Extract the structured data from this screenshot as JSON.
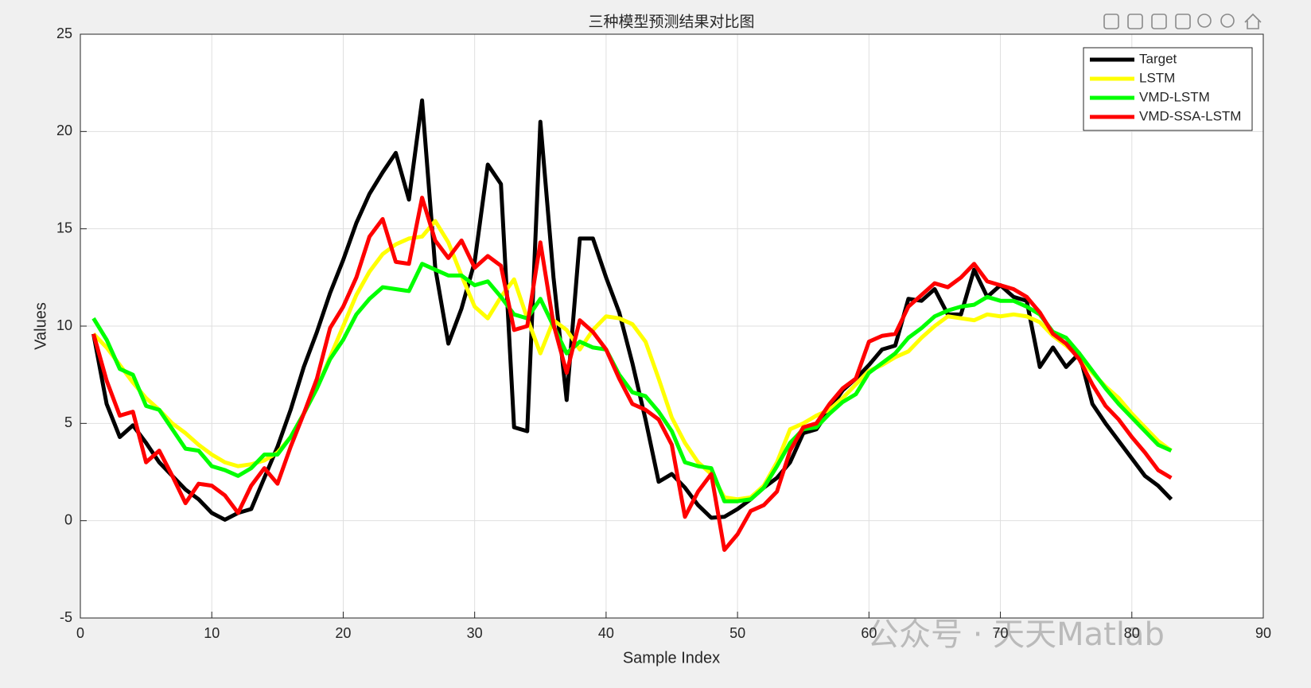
{
  "chart_data": {
    "type": "line",
    "title": "三种模型预测结果对比图",
    "x_label": "Sample Index",
    "y_label": "Values",
    "watermark": "公众号 · 天天Matlab",
    "x": [
      1,
      2,
      3,
      4,
      5,
      6,
      7,
      8,
      9,
      10,
      11,
      12,
      13,
      14,
      15,
      16,
      17,
      18,
      19,
      20,
      21,
      22,
      23,
      24,
      25,
      26,
      27,
      28,
      29,
      30,
      31,
      32,
      33,
      34,
      35,
      36,
      37,
      38,
      39,
      40,
      41,
      42,
      43,
      44,
      45,
      46,
      47,
      48,
      49,
      50,
      51,
      52,
      53,
      54,
      55,
      56,
      57,
      58,
      59,
      60,
      61,
      62,
      63,
      64,
      65,
      66,
      67,
      68,
      69,
      70,
      71,
      72,
      73,
      74,
      75,
      76,
      77,
      78,
      79,
      80,
      81,
      82,
      83
    ],
    "series": [
      {
        "name": "Target",
        "color": "#000000",
        "values": [
          9.6,
          6.0,
          4.3,
          4.9,
          4.0,
          3.0,
          2.3,
          1.6,
          1.1,
          0.4,
          0.05,
          0.4,
          0.6,
          2.2,
          3.8,
          5.7,
          7.9,
          9.7,
          11.7,
          13.4,
          15.3,
          16.8,
          17.9,
          18.9,
          16.5,
          21.6,
          13.0,
          9.1,
          10.9,
          13.3,
          18.3,
          17.3,
          4.8,
          4.6,
          20.5,
          12.5,
          6.2,
          14.5,
          14.5,
          12.5,
          10.7,
          8.1,
          5.2,
          2.0,
          2.4,
          1.7,
          0.8,
          0.15,
          0.2,
          0.6,
          1.1,
          1.7,
          2.2,
          3.0,
          4.5,
          4.7,
          5.7,
          6.7,
          7.3,
          8.0,
          8.8,
          9.0,
          11.4,
          11.3,
          11.9,
          10.6,
          10.6,
          12.9,
          11.5,
          12.1,
          11.5,
          11.3,
          7.9,
          8.9,
          7.9,
          8.6,
          6.0,
          5.0,
          4.1,
          3.2,
          2.3,
          1.8,
          1.1
        ]
      },
      {
        "name": "LSTM",
        "color": "#ffff00",
        "values": [
          9.6,
          8.9,
          8.0,
          7.1,
          6.3,
          5.7,
          5.0,
          4.5,
          3.9,
          3.4,
          3.0,
          2.8,
          2.9,
          3.1,
          3.5,
          4.3,
          5.5,
          6.8,
          8.4,
          10.0,
          11.6,
          12.8,
          13.7,
          14.2,
          14.5,
          14.6,
          15.4,
          14.3,
          12.6,
          11.0,
          10.4,
          11.5,
          12.4,
          10.4,
          8.6,
          10.3,
          9.8,
          8.8,
          9.8,
          10.5,
          10.4,
          10.1,
          9.2,
          7.3,
          5.3,
          4.0,
          3.0,
          2.4,
          1.2,
          1.1,
          1.2,
          1.8,
          3.0,
          4.7,
          5.0,
          5.4,
          5.7,
          6.3,
          7.0,
          7.7,
          8.0,
          8.4,
          8.7,
          9.4,
          10.0,
          10.5,
          10.4,
          10.3,
          10.6,
          10.5,
          10.6,
          10.5,
          10.2,
          9.5,
          9.0,
          8.4,
          7.6,
          6.9,
          6.3,
          5.5,
          4.8,
          4.1,
          3.6
        ]
      },
      {
        "name": "VMD-LSTM",
        "color": "#00ff00",
        "values": [
          10.4,
          9.3,
          7.8,
          7.5,
          5.9,
          5.7,
          4.7,
          3.7,
          3.6,
          2.8,
          2.6,
          2.3,
          2.7,
          3.4,
          3.4,
          4.3,
          5.5,
          6.8,
          8.3,
          9.3,
          10.6,
          11.4,
          12.0,
          11.9,
          11.8,
          13.2,
          12.9,
          12.6,
          12.6,
          12.1,
          12.3,
          11.5,
          10.6,
          10.4,
          11.4,
          10.0,
          8.6,
          9.2,
          8.9,
          8.8,
          7.5,
          6.6,
          6.4,
          5.6,
          4.6,
          3.0,
          2.8,
          2.7,
          1.0,
          1.0,
          1.1,
          1.7,
          2.8,
          4.0,
          4.7,
          4.8,
          5.5,
          6.1,
          6.5,
          7.6,
          8.1,
          8.6,
          9.4,
          9.9,
          10.5,
          10.8,
          11.0,
          11.1,
          11.5,
          11.3,
          11.3,
          11.0,
          10.6,
          9.7,
          9.4,
          8.6,
          7.7,
          6.8,
          6.0,
          5.3,
          4.6,
          3.9,
          3.6
        ]
      },
      {
        "name": "VMD-SSA-LSTM",
        "color": "#ff0000",
        "values": [
          9.6,
          7.2,
          5.4,
          5.6,
          3.0,
          3.6,
          2.3,
          0.9,
          1.9,
          1.8,
          1.3,
          0.4,
          1.8,
          2.7,
          1.9,
          3.8,
          5.5,
          7.3,
          9.9,
          11.0,
          12.5,
          14.6,
          15.5,
          13.3,
          13.2,
          16.6,
          14.4,
          13.5,
          14.4,
          13.0,
          13.6,
          13.1,
          9.8,
          10.0,
          14.3,
          10.1,
          7.6,
          10.3,
          9.7,
          8.8,
          7.3,
          6.0,
          5.7,
          5.2,
          3.9,
          0.2,
          1.5,
          2.4,
          -1.5,
          -0.7,
          0.5,
          0.8,
          1.5,
          3.6,
          4.8,
          5.0,
          6.0,
          6.8,
          7.3,
          9.2,
          9.5,
          9.6,
          11.0,
          11.6,
          12.2,
          12.0,
          12.5,
          13.2,
          12.3,
          12.1,
          11.9,
          11.5,
          10.7,
          9.6,
          9.1,
          8.3,
          7.0,
          5.9,
          5.2,
          4.3,
          3.5,
          2.6,
          2.2
        ]
      }
    ],
    "xlim": [
      0,
      90
    ],
    "xticks": [
      0,
      10,
      20,
      30,
      40,
      50,
      60,
      70,
      80,
      90
    ],
    "ylim": [
      -5,
      25
    ],
    "yticks": [
      -5,
      0,
      5,
      10,
      15,
      20,
      25
    ],
    "grid": true,
    "legend_position": "upper-right"
  }
}
